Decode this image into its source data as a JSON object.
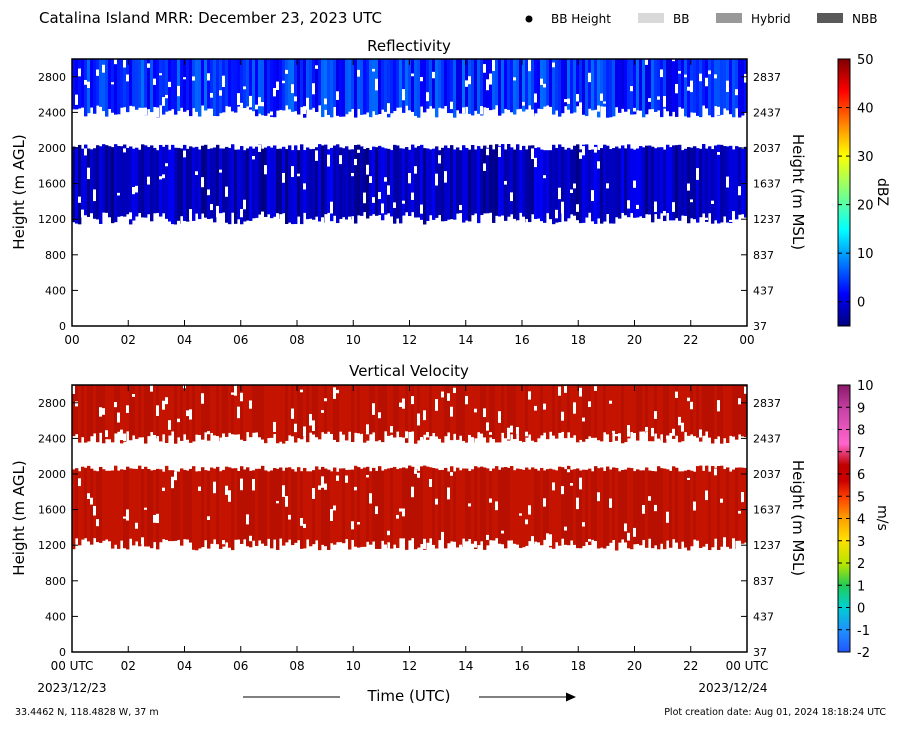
{
  "header": {
    "title": "Catalina Island MRR:  December 23, 2023 UTC",
    "legend": [
      {
        "label": "BB Height",
        "marker": "dot",
        "color": "#000000"
      },
      {
        "label": "BB",
        "marker": "swatch",
        "color": "#d9d9d9"
      },
      {
        "label": "Hybrid",
        "marker": "swatch",
        "color": "#999999"
      },
      {
        "label": "NBB",
        "marker": "swatch",
        "color": "#595959"
      }
    ]
  },
  "footer": {
    "location": "33.4462 N, 118.4828 W, 37 m",
    "creation": "Plot creation date: Aug 01, 2024 18:18:24 UTC",
    "xlabel": "Time (UTC)",
    "start_date": "2023/12/23",
    "end_date": "2023/12/24"
  },
  "chart_data": [
    {
      "type": "heatmap",
      "title": "Reflectivity",
      "xlabel": "",
      "ylabel": "Height (m AGL)",
      "ylabel_right": "Height (m MSL)",
      "xlim": [
        0,
        24
      ],
      "ylim": [
        0,
        3000
      ],
      "x_ticks": [
        "00",
        "02",
        "04",
        "06",
        "08",
        "10",
        "12",
        "14",
        "16",
        "18",
        "20",
        "22",
        "00"
      ],
      "y_ticks": [
        0,
        400,
        800,
        1200,
        1600,
        2000,
        2400,
        2800
      ],
      "y_ticks_right": [
        37,
        437,
        837,
        1237,
        1637,
        2037,
        2437,
        2837
      ],
      "grid": false,
      "colorbar": {
        "label": "dBZ",
        "min": -5,
        "max": 50,
        "ticks": [
          0,
          10,
          20,
          30,
          40,
          50
        ],
        "colormap": "jet"
      },
      "layers": [
        {
          "name": "upper",
          "bottom": 2400,
          "top": 3000,
          "value_range": [
            0,
            8
          ]
        },
        {
          "name": "lower",
          "bottom": 1200,
          "top": 2000,
          "value_range": [
            -5,
            2
          ]
        }
      ]
    },
    {
      "type": "heatmap",
      "title": "Vertical Velocity",
      "xlabel": "Time (UTC)",
      "ylabel": "Height (m AGL)",
      "ylabel_right": "Height (m MSL)",
      "xlim": [
        0,
        24
      ],
      "ylim": [
        0,
        3000
      ],
      "x_ticks": [
        "00 UTC",
        "02",
        "04",
        "06",
        "08",
        "10",
        "12",
        "14",
        "16",
        "18",
        "20",
        "22",
        "00 UTC"
      ],
      "y_ticks": [
        0,
        400,
        800,
        1200,
        1600,
        2000,
        2400,
        2800
      ],
      "y_ticks_right": [
        37,
        437,
        837,
        1237,
        1637,
        2037,
        2437,
        2837
      ],
      "grid": false,
      "colorbar": {
        "label": "m/s",
        "min": -2,
        "max": 10,
        "ticks": [
          -2,
          -1,
          0,
          1,
          2,
          3,
          4,
          5,
          6,
          7,
          8,
          9,
          10
        ],
        "colormap": "velocity"
      },
      "layers": [
        {
          "name": "upper",
          "bottom": 2400,
          "top": 3000,
          "value": 6
        },
        {
          "name": "lower",
          "bottom": 1200,
          "top": 2050,
          "value": 6
        }
      ]
    }
  ]
}
